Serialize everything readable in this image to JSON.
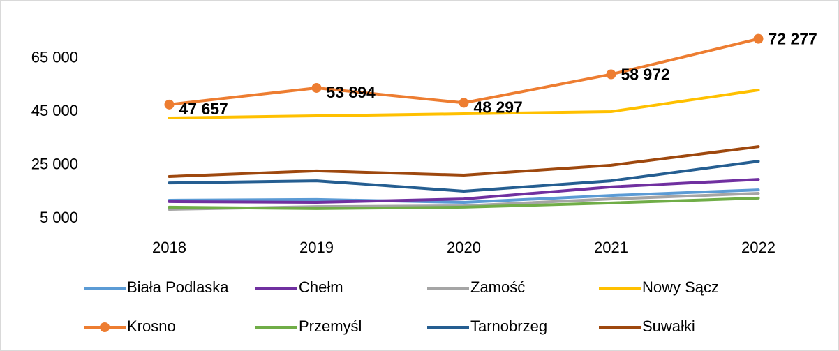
{
  "chart_data": {
    "type": "line",
    "categories": [
      "2018",
      "2019",
      "2020",
      "2021",
      "2022"
    ],
    "ylim": [
      5000,
      85000
    ],
    "yticks": [
      {
        "value": 5000,
        "label": "5 000"
      },
      {
        "value": 25000,
        "label": "25 000"
      },
      {
        "value": 45000,
        "label": "45 000"
      },
      {
        "value": 65000,
        "label": "65 000"
      }
    ],
    "grid": false,
    "legend": "bottom",
    "series": [
      {
        "name": "Biała Podlaska",
        "color": "#5b9bd5",
        "values": [
          11800,
          12100,
          11000,
          13600,
          15700
        ]
      },
      {
        "name": "Chełm",
        "color": "#7030a0",
        "values": [
          11300,
          11000,
          12300,
          16800,
          19600
        ]
      },
      {
        "name": "Zamość",
        "color": "#a5a5a5",
        "values": [
          8400,
          9400,
          9700,
          12300,
          14400
        ]
      },
      {
        "name": "Nowy Sącz",
        "color": "#ffc000",
        "values": [
          42640,
          43430,
          44210,
          45000,
          53100
        ]
      },
      {
        "name": "Krosno",
        "color": "#ed7d31",
        "markers": true,
        "values": [
          47657,
          53894,
          48297,
          58972,
          72277
        ],
        "value_labels": [
          "47 657",
          "53 894",
          "48 297",
          "58 972",
          "72 277"
        ]
      },
      {
        "name": "Przemyśl",
        "color": "#70ad47",
        "values": [
          9200,
          8700,
          9200,
          10800,
          12600
        ]
      },
      {
        "name": "Tarnobrzeg",
        "color": "#255e91",
        "values": [
          18300,
          19100,
          15200,
          19100,
          26400
        ]
      },
      {
        "name": "Suwałki",
        "color": "#9e480e",
        "values": [
          20700,
          22800,
          21200,
          24900,
          31900
        ]
      }
    ]
  }
}
